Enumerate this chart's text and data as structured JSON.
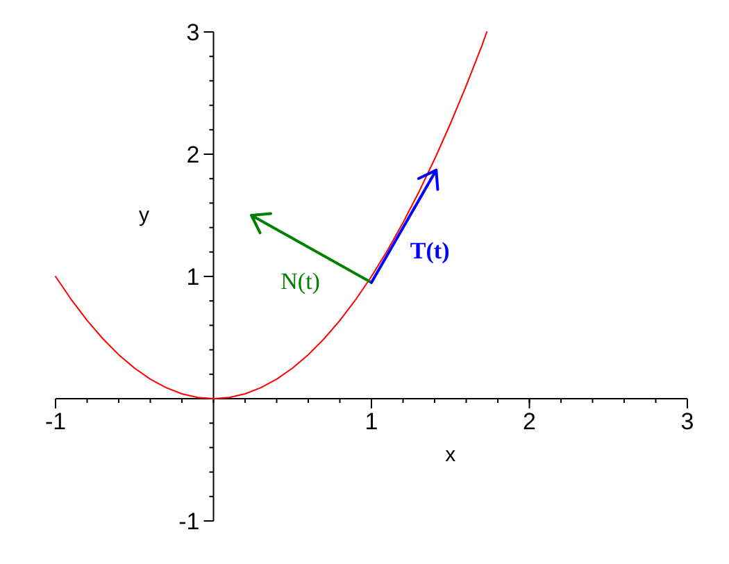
{
  "chart_data": {
    "type": "line",
    "xlabel": "x",
    "ylabel": "y",
    "xlim": [
      -1,
      3
    ],
    "ylim": [
      -1,
      3
    ],
    "xticks": [
      -1,
      1,
      2,
      3
    ],
    "yticks": [
      -1,
      1,
      2,
      3
    ],
    "grid": false,
    "marker": "none",
    "line_style": "solid",
    "series": [
      {
        "color": "#ff0000",
        "x": [
          -1,
          -0.9,
          -0.8,
          -0.7,
          -0.6,
          -0.5,
          -0.4,
          -0.3,
          -0.2,
          -0.1,
          0,
          0.1,
          0.2,
          0.3,
          0.4,
          0.5,
          0.6,
          0.7,
          0.8,
          0.9,
          1,
          1.1,
          1.2,
          1.3,
          1.4,
          1.5,
          1.6,
          1.7,
          1.73
        ],
        "values": [
          1,
          0.81,
          0.64,
          0.49,
          0.36,
          0.25,
          0.16,
          0.09,
          0.04,
          0.01,
          0,
          0.01,
          0.04,
          0.09,
          0.16,
          0.25,
          0.36,
          0.49,
          0.64,
          0.81,
          1,
          1.21,
          1.44,
          1.69,
          1.96,
          2.25,
          2.56,
          2.89,
          3
        ]
      }
    ],
    "annotations": [
      "N(t)",
      "T(t)"
    ]
  }
}
